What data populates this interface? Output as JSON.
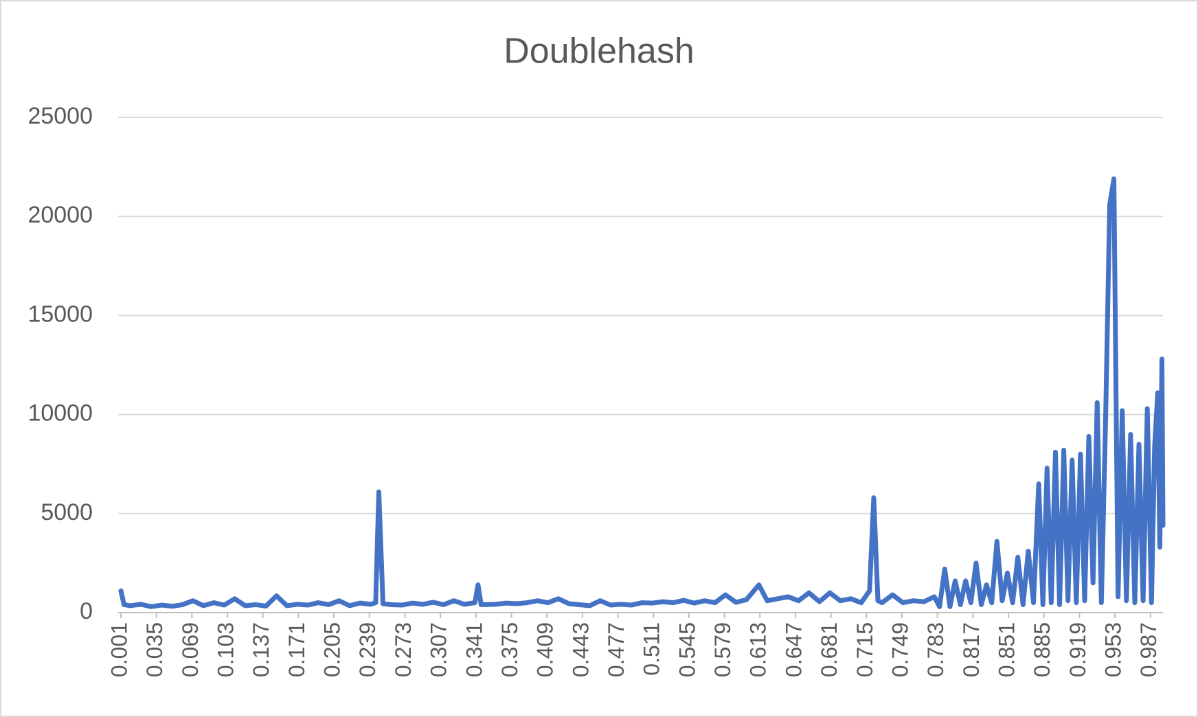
{
  "chart_data": {
    "type": "line",
    "title": "Doublehash",
    "color": "#4472c4",
    "grid": true,
    "xlim": [
      0.001,
      0.999
    ],
    "xticks": [
      0.001,
      0.035,
      0.069,
      0.103,
      0.137,
      0.171,
      0.205,
      0.239,
      0.273,
      0.307,
      0.341,
      0.375,
      0.409,
      0.443,
      0.477,
      0.511,
      0.545,
      0.579,
      0.613,
      0.647,
      0.681,
      0.715,
      0.749,
      0.783,
      0.817,
      0.851,
      0.885,
      0.919,
      0.953,
      0.987
    ],
    "ylim": [
      0,
      25000
    ],
    "yticks": [
      0,
      5000,
      10000,
      15000,
      20000,
      25000
    ],
    "x": [
      0.001,
      0.004,
      0.01,
      0.02,
      0.03,
      0.04,
      0.05,
      0.06,
      0.07,
      0.08,
      0.09,
      0.1,
      0.11,
      0.12,
      0.13,
      0.14,
      0.15,
      0.16,
      0.17,
      0.18,
      0.19,
      0.2,
      0.21,
      0.22,
      0.23,
      0.24,
      0.245,
      0.248,
      0.252,
      0.26,
      0.27,
      0.28,
      0.29,
      0.3,
      0.31,
      0.32,
      0.33,
      0.34,
      0.343,
      0.346,
      0.36,
      0.37,
      0.38,
      0.39,
      0.4,
      0.41,
      0.42,
      0.43,
      0.44,
      0.45,
      0.46,
      0.47,
      0.48,
      0.49,
      0.5,
      0.51,
      0.52,
      0.53,
      0.54,
      0.55,
      0.56,
      0.57,
      0.58,
      0.59,
      0.6,
      0.612,
      0.62,
      0.63,
      0.64,
      0.65,
      0.66,
      0.67,
      0.68,
      0.69,
      0.7,
      0.71,
      0.718,
      0.722,
      0.726,
      0.73,
      0.74,
      0.75,
      0.76,
      0.77,
      0.78,
      0.785,
      0.79,
      0.795,
      0.8,
      0.805,
      0.81,
      0.815,
      0.82,
      0.825,
      0.83,
      0.835,
      0.84,
      0.845,
      0.85,
      0.855,
      0.86,
      0.865,
      0.87,
      0.875,
      0.88,
      0.884,
      0.888,
      0.892,
      0.896,
      0.9,
      0.904,
      0.908,
      0.912,
      0.916,
      0.92,
      0.924,
      0.928,
      0.932,
      0.936,
      0.94,
      0.944,
      0.948,
      0.952,
      0.956,
      0.96,
      0.964,
      0.968,
      0.972,
      0.976,
      0.98,
      0.984,
      0.988,
      0.991,
      0.994,
      0.996,
      0.998,
      0.999
    ],
    "values": [
      1100,
      400,
      350,
      420,
      300,
      380,
      320,
      400,
      600,
      350,
      500,
      380,
      700,
      350,
      400,
      330,
      850,
      350,
      420,
      380,
      500,
      400,
      600,
      350,
      480,
      420,
      500,
      6100,
      450,
      400,
      380,
      480,
      420,
      520,
      400,
      600,
      420,
      500,
      1400,
      400,
      420,
      480,
      450,
      500,
      600,
      500,
      700,
      450,
      400,
      350,
      600,
      380,
      420,
      380,
      500,
      480,
      550,
      500,
      620,
      480,
      600,
      500,
      900,
      520,
      650,
      1400,
      600,
      700,
      800,
      600,
      1000,
      550,
      1000,
      600,
      700,
      500,
      1100,
      5800,
      600,
      500,
      900,
      500,
      600,
      550,
      800,
      300,
      2200,
      300,
      1600,
      400,
      1600,
      500,
      2500,
      400,
      1400,
      500,
      3600,
      600,
      2000,
      500,
      2800,
      400,
      3100,
      500,
      6500,
      400,
      7300,
      500,
      8100,
      400,
      8200,
      600,
      7700,
      500,
      8000,
      600,
      8900,
      1500,
      10600,
      500,
      9600,
      20600,
      21900,
      800,
      10200,
      600,
      9000,
      500,
      8500,
      600,
      10300,
      500,
      8400,
      11100,
      3300,
      12800,
      4400
    ]
  }
}
